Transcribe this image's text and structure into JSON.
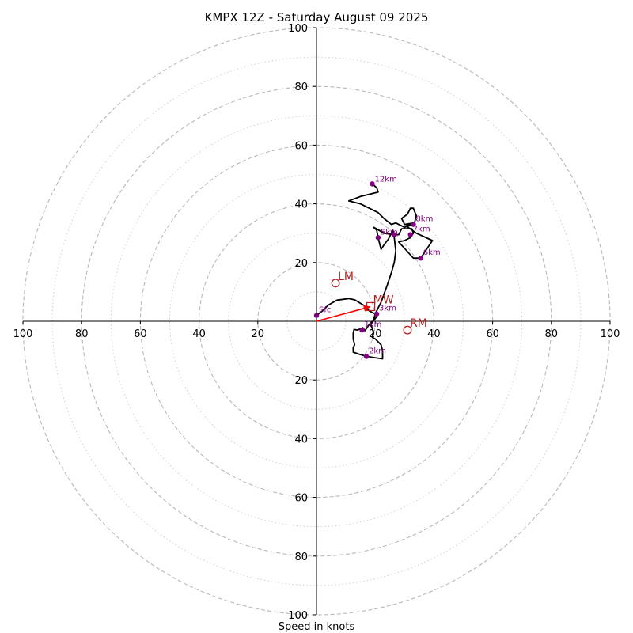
{
  "chart_data": {
    "type": "scatter",
    "title": "KMPX 12Z - Saturday August 09 2025",
    "xlabel": "Speed in knots",
    "ylabel": "",
    "range": 100,
    "ring_major_values": [
      20,
      40,
      60,
      80,
      100
    ],
    "ring_minor_values": [
      10,
      30,
      50,
      70,
      90
    ],
    "tick_labels": {
      "top": [
        "20",
        "40",
        "60",
        "80",
        "100"
      ],
      "bottom": [
        "20",
        "40",
        "60",
        "80",
        "100"
      ],
      "left": [
        "20",
        "40",
        "60",
        "80",
        "100"
      ],
      "right": [
        "20",
        "40",
        "60",
        "80",
        "100"
      ]
    },
    "hodograph_trace": [
      [
        0,
        2
      ],
      [
        2,
        3.5
      ],
      [
        4,
        5.5
      ],
      [
        7,
        7.2
      ],
      [
        11,
        7.7
      ],
      [
        13,
        7.3
      ],
      [
        16,
        5.5
      ],
      [
        18,
        3.5
      ],
      [
        20,
        2.5
      ],
      [
        20.5,
        1.5
      ],
      [
        19.5,
        0.3
      ],
      [
        18,
        -1
      ],
      [
        17,
        -2.5
      ],
      [
        16.5,
        -3.2
      ],
      [
        15.8,
        -2.2
      ],
      [
        14,
        -3
      ],
      [
        12.8,
        -2.8
      ],
      [
        12.5,
        -4
      ],
      [
        12.5,
        -6
      ],
      [
        13,
        -8
      ],
      [
        12.5,
        -9
      ],
      [
        12.5,
        -10.5
      ],
      [
        14.5,
        -11.2
      ],
      [
        16.5,
        -11.8
      ],
      [
        19,
        -12.3
      ],
      [
        22.5,
        -12.8
      ],
      [
        22.5,
        -10
      ],
      [
        22,
        -8
      ],
      [
        20,
        -6
      ],
      [
        19,
        -5.5
      ],
      [
        19.5,
        -4
      ],
      [
        19,
        -2.5
      ],
      [
        18.5,
        -1
      ],
      [
        19.5,
        0.5
      ],
      [
        20,
        2.5
      ],
      [
        22,
        6.5
      ],
      [
        24,
        12
      ],
      [
        25.5,
        16.5
      ],
      [
        26.5,
        20
      ],
      [
        27,
        24
      ],
      [
        26.5,
        28.5
      ],
      [
        26,
        31
      ],
      [
        25.5,
        30
      ],
      [
        24.5,
        28
      ],
      [
        23,
        26
      ],
      [
        22,
        24.5
      ],
      [
        21,
        28.5
      ],
      [
        20.5,
        31
      ],
      [
        19.5,
        32
      ],
      [
        23,
        30
      ],
      [
        26,
        29.5
      ],
      [
        28,
        29.5
      ],
      [
        29,
        31.5
      ],
      [
        32.5,
        31.5
      ],
      [
        33,
        30
      ],
      [
        32,
        28.5
      ],
      [
        30,
        27.5
      ],
      [
        28,
        27
      ],
      [
        33,
        21.5
      ],
      [
        35.5,
        21.5
      ],
      [
        37.5,
        24.5
      ],
      [
        39.5,
        27.5
      ],
      [
        34,
        30
      ],
      [
        30.5,
        32.5
      ],
      [
        33,
        33.5
      ],
      [
        30,
        33
      ],
      [
        29,
        35
      ],
      [
        31,
        36.5
      ],
      [
        32,
        38.5
      ],
      [
        33,
        38.5
      ],
      [
        34,
        36
      ],
      [
        33.5,
        34
      ],
      [
        33,
        33
      ],
      [
        30,
        32
      ],
      [
        27,
        33.5
      ],
      [
        25.5,
        33
      ],
      [
        23,
        35
      ],
      [
        21,
        37
      ],
      [
        18,
        38.5
      ],
      [
        15,
        40
      ],
      [
        11,
        41
      ],
      [
        15,
        42.5
      ],
      [
        19,
        43.5
      ],
      [
        21,
        44
      ],
      [
        20.5,
        45.5
      ],
      [
        19,
        46.8
      ]
    ],
    "height_markers": [
      {
        "label": "Sfc",
        "u": 0,
        "v": 2
      },
      {
        "label": "1km",
        "u": 15.5,
        "v": -3
      },
      {
        "label": "2km",
        "u": 17,
        "v": -12
      },
      {
        "label": "3km",
        "u": 20.5,
        "v": 2.5
      },
      {
        "label": "5km",
        "u": 21,
        "v": 28.5
      },
      {
        "label": "",
        "u": 26.5,
        "v": 29.5
      },
      {
        "label": "6km",
        "u": 35.5,
        "v": 21.5
      },
      {
        "label": "7km",
        "u": 32,
        "v": 29.5
      },
      {
        "label": "8km",
        "u": 33,
        "v": 33
      }
    ],
    "top_marker": {
      "label": "12km",
      "u": 19,
      "v": 46.8
    },
    "mean_wind_vector": {
      "label": "MW",
      "u": 18.5,
      "v": 5
    },
    "storm_motions": [
      {
        "label": "LM",
        "u": 6.5,
        "v": 13
      },
      {
        "label": "RM",
        "u": 31,
        "v": -3
      }
    ],
    "colors": {
      "trace": "#000000",
      "markers": "#800080",
      "motion": "#b22222",
      "vector": "#ff0000"
    }
  }
}
